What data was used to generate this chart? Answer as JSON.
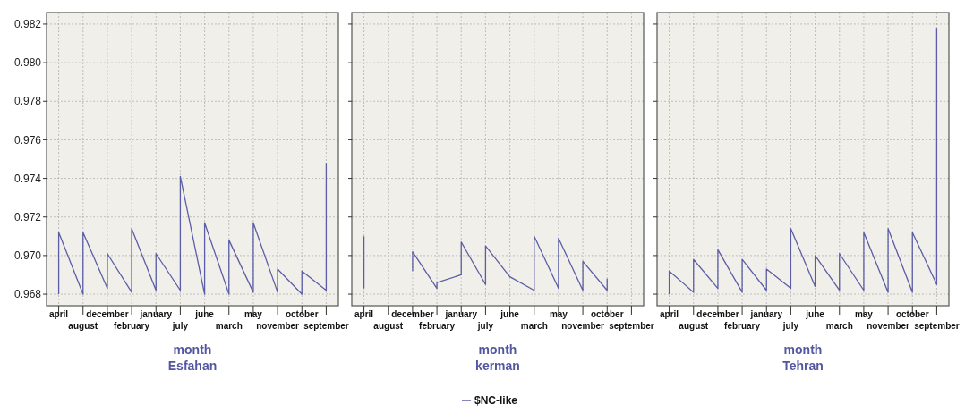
{
  "chart_data": [
    {
      "type": "line",
      "title": "Esfahan",
      "xlabel": "month",
      "categories": [
        "april",
        "august",
        "december",
        "february",
        "january",
        "july",
        "june",
        "march",
        "may",
        "november",
        "october",
        "september"
      ],
      "ylim": [
        0.9674,
        0.9826
      ],
      "yticks": [
        {
          "value": 0.968,
          "label": "0.968"
        },
        {
          "value": 0.97,
          "label": "0.970"
        },
        {
          "value": 0.972,
          "label": "0.972"
        },
        {
          "value": 0.974,
          "label": "0.974"
        },
        {
          "value": 0.976,
          "label": "0.976"
        },
        {
          "value": 0.978,
          "label": "0.978"
        },
        {
          "value": 0.98,
          "label": "0.980"
        },
        {
          "value": 0.982,
          "label": "0.982"
        }
      ],
      "grid": true,
      "legend": false,
      "series": [
        {
          "color": "#5b5ea6",
          "x": [
            "april",
            "april",
            "august",
            "august",
            "december",
            "december",
            "february",
            "february",
            "january",
            "january",
            "july",
            "july",
            "june",
            "june",
            "march",
            "march",
            "may",
            "may",
            "november",
            "november",
            "october",
            "october",
            "september",
            "september"
          ],
          "values": [
            0.968,
            0.9712,
            0.968,
            0.9712,
            0.9683,
            0.9701,
            0.9681,
            0.9714,
            0.9682,
            0.9701,
            0.9682,
            0.9741,
            0.968,
            0.9717,
            0.968,
            0.9708,
            0.9681,
            0.9717,
            0.9681,
            0.9693,
            0.968,
            0.9692,
            0.9682,
            0.9748
          ]
        }
      ]
    },
    {
      "type": "line",
      "title": "kerman",
      "xlabel": "month",
      "categories": [
        "april",
        "august",
        "december",
        "february",
        "january",
        "july",
        "june",
        "march",
        "may",
        "november",
        "october",
        "september"
      ],
      "ylim": [
        0.9674,
        0.9826
      ],
      "yticks": [
        0.968,
        0.97,
        0.972,
        0.974,
        0.976,
        0.978,
        0.98,
        0.982
      ],
      "tick_labels": "x",
      "grid": true,
      "legend": "bottom",
      "series": [
        {
          "name": "$NC-like",
          "color": "#5b5ea6",
          "x": [
            "april",
            "april",
            "august",
            "august",
            "december",
            "december",
            "february",
            "february",
            "january",
            "january",
            "july",
            "july",
            "june",
            "june",
            "march",
            "march",
            "may",
            "may",
            "november",
            "november",
            "october",
            "october",
            "september",
            "september"
          ],
          "values": [
            0.9683,
            0.971,
            null,
            null,
            0.9692,
            0.9702,
            0.9683,
            0.9686,
            0.969,
            0.9707,
            0.9685,
            0.9705,
            0.9689,
            0.9689,
            0.9682,
            0.971,
            0.9683,
            0.9709,
            0.9682,
            0.9697,
            0.9682,
            0.9688,
            null,
            null
          ]
        }
      ]
    },
    {
      "type": "line",
      "title": "Tehran",
      "xlabel": "month",
      "categories": [
        "april",
        "august",
        "december",
        "february",
        "january",
        "july",
        "june",
        "march",
        "may",
        "november",
        "october",
        "september"
      ],
      "ylim": [
        0.9674,
        0.9826
      ],
      "yticks": [
        0.968,
        0.97,
        0.972,
        0.974,
        0.976,
        0.978,
        0.98,
        0.982
      ],
      "tick_labels": "x",
      "grid": true,
      "legend": false,
      "series": [
        {
          "color": "#5b5ea6",
          "x": [
            "april",
            "april",
            "august",
            "august",
            "december",
            "december",
            "february",
            "february",
            "january",
            "january",
            "july",
            "july",
            "june",
            "june",
            "march",
            "march",
            "may",
            "may",
            "november",
            "november",
            "october",
            "october",
            "september",
            "september"
          ],
          "values": [
            0.968,
            0.9692,
            0.9681,
            0.9698,
            0.9683,
            0.9703,
            0.9681,
            0.9698,
            0.9682,
            0.9693,
            0.9683,
            0.9714,
            0.9684,
            0.97,
            0.9682,
            0.9701,
            0.9682,
            0.9712,
            0.9681,
            0.9714,
            0.9681,
            0.9712,
            0.9685,
            0.9818
          ]
        }
      ]
    }
  ]
}
